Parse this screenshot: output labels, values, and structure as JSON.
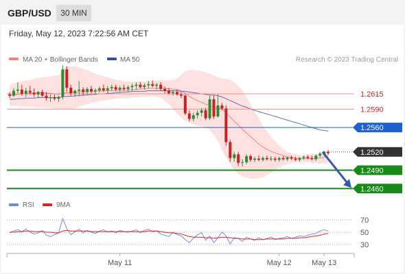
{
  "header": {
    "symbol": "GBP/USD",
    "timeframe": "30 MIN"
  },
  "timestamp": "Friday, May 12, 2023 7:22:56 AM CET",
  "legend": {
    "bb_label": "MA 20 + Bollinger Bands",
    "ma50_label": "MA 50",
    "credit": "Research © 2023 Trading Central"
  },
  "rsi_legend": {
    "rsi_label": "RSI",
    "ma9_label": "9MA"
  },
  "colors": {
    "candle_up": "#2e8b2e",
    "candle_down": "#cc1f1f",
    "ma20": "#f28080",
    "bb_fill": "#fde1e1",
    "ma50": "#5a6fb3",
    "resistance": "#f08c8c",
    "pivot": "#1f5fd1",
    "support": "#178a17",
    "current": "#333333",
    "arrow": "#2e5aa7",
    "rsi": "#6b8fe0",
    "rsi_ma": "#e02020"
  },
  "chart_data": {
    "type": "candlestick",
    "ylim": [
      1.2448,
      1.2652
    ],
    "x_labels": [
      {
        "label": "May 11",
        "index": 27
      },
      {
        "label": "May 12",
        "index": 66
      },
      {
        "label": "May 13",
        "index": 77
      }
    ],
    "levels": [
      {
        "value": 1.2615,
        "label": "1.2615",
        "kind": "resistance"
      },
      {
        "value": 1.259,
        "label": "1.2590",
        "kind": "resistance"
      },
      {
        "value": 1.256,
        "label": "1.2560",
        "kind": "pivot"
      },
      {
        "value": 1.252,
        "label": "1.2520",
        "kind": "current"
      },
      {
        "value": 1.249,
        "label": "1.2490",
        "kind": "support"
      },
      {
        "value": 1.246,
        "label": "1.2460",
        "kind": "support"
      }
    ],
    "forecast": {
      "from": 1.2522,
      "to": 1.246,
      "direction": "down"
    },
    "candles": [
      [
        1.2614,
        1.2618,
        1.2608,
        1.2612
      ],
      [
        1.2612,
        1.2624,
        1.261,
        1.262
      ],
      [
        1.262,
        1.2634,
        1.2616,
        1.2622
      ],
      [
        1.2622,
        1.263,
        1.2612,
        1.2615
      ],
      [
        1.2615,
        1.2625,
        1.261,
        1.262
      ],
      [
        1.262,
        1.2628,
        1.2614,
        1.2617
      ],
      [
        1.2617,
        1.2624,
        1.261,
        1.2614
      ],
      [
        1.2614,
        1.262,
        1.2608,
        1.2618
      ],
      [
        1.2618,
        1.2622,
        1.261,
        1.2612
      ],
      [
        1.2612,
        1.2618,
        1.2604,
        1.2608
      ],
      [
        1.2608,
        1.2614,
        1.2602,
        1.2609
      ],
      [
        1.2609,
        1.2614,
        1.2604,
        1.2607
      ],
      [
        1.2607,
        1.2612,
        1.2602,
        1.261
      ],
      [
        1.261,
        1.2662,
        1.2606,
        1.2655
      ],
      [
        1.2655,
        1.266,
        1.2618,
        1.2625
      ],
      [
        1.2625,
        1.263,
        1.2612,
        1.2616
      ],
      [
        1.2616,
        1.2622,
        1.261,
        1.262
      ],
      [
        1.262,
        1.2636,
        1.2612,
        1.2622
      ],
      [
        1.2622,
        1.2626,
        1.2612,
        1.2618
      ],
      [
        1.2618,
        1.2626,
        1.2614,
        1.2623
      ],
      [
        1.2623,
        1.2628,
        1.2616,
        1.2619
      ],
      [
        1.2619,
        1.2624,
        1.2614,
        1.2621
      ],
      [
        1.2621,
        1.2627,
        1.2617,
        1.2624
      ],
      [
        1.2624,
        1.263,
        1.2618,
        1.2621
      ],
      [
        1.2621,
        1.2628,
        1.2616,
        1.2624
      ],
      [
        1.2624,
        1.263,
        1.262,
        1.2626
      ],
      [
        1.2626,
        1.263,
        1.262,
        1.2622
      ],
      [
        1.2622,
        1.2628,
        1.2618,
        1.2625
      ],
      [
        1.2625,
        1.263,
        1.262,
        1.2623
      ],
      [
        1.2623,
        1.2629,
        1.2618,
        1.2626
      ],
      [
        1.2626,
        1.2632,
        1.262,
        1.2628
      ],
      [
        1.2628,
        1.2634,
        1.2622,
        1.263
      ],
      [
        1.263,
        1.2634,
        1.2624,
        1.2626
      ],
      [
        1.2626,
        1.2632,
        1.2622,
        1.2629
      ],
      [
        1.2629,
        1.2636,
        1.2624,
        1.2631
      ],
      [
        1.2631,
        1.2637,
        1.2626,
        1.2628
      ],
      [
        1.2628,
        1.2633,
        1.2622,
        1.263
      ],
      [
        1.263,
        1.2634,
        1.262,
        1.2623
      ],
      [
        1.2623,
        1.2627,
        1.2616,
        1.262
      ],
      [
        1.262,
        1.2625,
        1.2614,
        1.2616
      ],
      [
        1.2616,
        1.2621,
        1.2612,
        1.2618
      ],
      [
        1.2618,
        1.2622,
        1.2612,
        1.2614
      ],
      [
        1.2614,
        1.2618,
        1.2608,
        1.2612
      ],
      [
        1.2612,
        1.2614,
        1.258,
        1.2583
      ],
      [
        1.2583,
        1.2588,
        1.257,
        1.2574
      ],
      [
        1.2574,
        1.2584,
        1.257,
        1.258
      ],
      [
        1.258,
        1.2588,
        1.2575,
        1.2584
      ],
      [
        1.2584,
        1.2592,
        1.2578,
        1.2588
      ],
      [
        1.2588,
        1.2592,
        1.2572,
        1.2575
      ],
      [
        1.2575,
        1.2612,
        1.2572,
        1.2606
      ],
      [
        1.2606,
        1.2612,
        1.2574,
        1.2578
      ],
      [
        1.2578,
        1.2614,
        1.2576,
        1.2596
      ],
      [
        1.2596,
        1.26,
        1.2588,
        1.2591
      ],
      [
        1.2591,
        1.2596,
        1.253,
        1.2536
      ],
      [
        1.2536,
        1.254,
        1.2504,
        1.251
      ],
      [
        1.251,
        1.252,
        1.2504,
        1.2516
      ],
      [
        1.2516,
        1.252,
        1.2497,
        1.2502
      ],
      [
        1.2502,
        1.2508,
        1.2496,
        1.2503
      ],
      [
        1.2503,
        1.2516,
        1.25,
        1.2513
      ],
      [
        1.2513,
        1.2516,
        1.2504,
        1.2507
      ],
      [
        1.2507,
        1.2512,
        1.2503,
        1.2509
      ],
      [
        1.2509,
        1.2514,
        1.2505,
        1.2507
      ],
      [
        1.2507,
        1.2513,
        1.2504,
        1.251
      ],
      [
        1.251,
        1.2514,
        1.2506,
        1.2508
      ],
      [
        1.2508,
        1.2513,
        1.2505,
        1.2509
      ],
      [
        1.2509,
        1.2512,
        1.2504,
        1.2507
      ],
      [
        1.2507,
        1.2512,
        1.2504,
        1.251
      ],
      [
        1.251,
        1.2513,
        1.2506,
        1.2508
      ],
      [
        1.2508,
        1.2512,
        1.2505,
        1.2511
      ],
      [
        1.2511,
        1.2514,
        1.2507,
        1.2509
      ],
      [
        1.2509,
        1.2512,
        1.2505,
        1.2507
      ],
      [
        1.2507,
        1.2512,
        1.2504,
        1.251
      ],
      [
        1.251,
        1.2514,
        1.2507,
        1.2512
      ],
      [
        1.2512,
        1.2515,
        1.2508,
        1.251
      ],
      [
        1.251,
        1.2514,
        1.2506,
        1.2508
      ],
      [
        1.2508,
        1.2516,
        1.2505,
        1.2514
      ],
      [
        1.2514,
        1.252,
        1.2511,
        1.2517
      ],
      [
        1.2517,
        1.2522,
        1.2513,
        1.252
      ],
      [
        1.252,
        1.2523,
        1.2515,
        1.2518
      ]
    ],
    "ma20": [
      1.2612,
      1.2613,
      1.2614,
      1.2615,
      1.2615,
      1.2616,
      1.2616,
      1.2617,
      1.2617,
      1.2616,
      1.2616,
      1.2615,
      1.2614,
      1.2616,
      1.2617,
      1.2617,
      1.2618,
      1.2618,
      1.2618,
      1.2619,
      1.2619,
      1.2619,
      1.262,
      1.262,
      1.262,
      1.262,
      1.262,
      1.2621,
      1.2621,
      1.2621,
      1.2622,
      1.2622,
      1.2623,
      1.2623,
      1.2624,
      1.2624,
      1.2624,
      1.2624,
      1.2624,
      1.2623,
      1.2623,
      1.2622,
      1.262,
      1.2616,
      1.2611,
      1.2607,
      1.2604,
      1.2601,
      1.2598,
      1.2596,
      1.2593,
      1.2592,
      1.259,
      1.2584,
      1.2577,
      1.257,
      1.2564,
      1.2557,
      1.2551,
      1.2545,
      1.2539,
      1.2533,
      1.2528,
      1.2524,
      1.2521,
      1.2518,
      1.2516,
      1.2514,
      1.2512,
      1.2511,
      1.251,
      1.2509,
      1.2509,
      1.2509,
      1.2509,
      1.251,
      1.251,
      1.2511,
      1.2512
    ],
    "bb_upper": [
      1.263,
      1.2632,
      1.2634,
      1.2636,
      1.2637,
      1.2638,
      1.2639,
      1.2641,
      1.2642,
      1.2643,
      1.2644,
      1.2645,
      1.2645,
      1.2656,
      1.266,
      1.266,
      1.266,
      1.2658,
      1.2656,
      1.2654,
      1.2651,
      1.2648,
      1.2646,
      1.2644,
      1.2642,
      1.264,
      1.2638,
      1.2637,
      1.2636,
      1.2635,
      1.2635,
      1.2635,
      1.2636,
      1.2636,
      1.2636,
      1.2636,
      1.2637,
      1.2637,
      1.2637,
      1.2637,
      1.2638,
      1.264,
      1.2646,
      1.2652,
      1.2654,
      1.2654,
      1.2653,
      1.2652,
      1.265,
      1.2648,
      1.2645,
      1.2642,
      1.264,
      1.264,
      1.2638,
      1.2634,
      1.2628,
      1.262,
      1.261,
      1.2598,
      1.2586,
      1.2575,
      1.2563,
      1.2553,
      1.2545,
      1.2538,
      1.253,
      1.2525,
      1.252,
      1.2518,
      1.2516,
      1.2515,
      1.2515,
      1.2515,
      1.2516,
      1.2517,
      1.2518,
      1.2519,
      1.2521
    ],
    "bb_lower": [
      1.2596,
      1.2595,
      1.2595,
      1.2594,
      1.2594,
      1.2594,
      1.2594,
      1.2593,
      1.2593,
      1.2592,
      1.2592,
      1.2591,
      1.259,
      1.259,
      1.259,
      1.259,
      1.2592,
      1.2594,
      1.2596,
      1.2598,
      1.26,
      1.2602,
      1.2603,
      1.2604,
      1.2605,
      1.2606,
      1.2607,
      1.2607,
      1.2608,
      1.2608,
      1.2609,
      1.2609,
      1.261,
      1.261,
      1.261,
      1.2611,
      1.261,
      1.2608,
      1.2604,
      1.2598,
      1.2591,
      1.2582,
      1.2576,
      1.2571,
      1.2568,
      1.2565,
      1.2563,
      1.2562,
      1.256,
      1.2556,
      1.2548,
      1.2538,
      1.2522,
      1.251,
      1.25,
      1.249,
      1.2484,
      1.248,
      1.2478,
      1.2476,
      1.2476,
      1.2477,
      1.2478,
      1.2482,
      1.2486,
      1.249,
      1.2494,
      1.2497,
      1.25,
      1.2502,
      1.2503,
      1.2503,
      1.2503,
      1.2503,
      1.2502,
      1.2502,
      1.2501,
      1.2501,
      1.2502
    ],
    "ma50": [
      1.2606,
      1.2606,
      1.2607,
      1.2607,
      1.2608,
      1.2608,
      1.2608,
      1.2609,
      1.2609,
      1.2609,
      1.2609,
      1.2609,
      1.2609,
      1.261,
      1.2611,
      1.2611,
      1.2612,
      1.2612,
      1.2613,
      1.2613,
      1.2614,
      1.2614,
      1.2615,
      1.2615,
      1.2616,
      1.2616,
      1.2617,
      1.2617,
      1.2618,
      1.2618,
      1.2619,
      1.2619,
      1.2619,
      1.2619,
      1.262,
      1.262,
      1.262,
      1.262,
      1.262,
      1.262,
      1.262,
      1.262,
      1.2619,
      1.2619,
      1.2618,
      1.2617,
      1.2616,
      1.2615,
      1.2614,
      1.2613,
      1.2613,
      1.2612,
      1.261,
      1.2607,
      1.2604,
      1.2601,
      1.2598,
      1.2595,
      1.2593,
      1.259,
      1.2588,
      1.2586,
      1.2584,
      1.2582,
      1.258,
      1.2578,
      1.2576,
      1.2574,
      1.2572,
      1.257,
      1.2568,
      1.2566,
      1.2564,
      1.2562,
      1.256,
      1.2558,
      1.2556,
      1.2555,
      1.2554
    ],
    "rsi_levels": [
      70,
      50,
      30
    ],
    "rsi_ylim": [
      20,
      80
    ],
    "rsi": [
      49,
      52,
      54,
      51,
      55,
      50,
      47,
      49,
      53,
      45,
      43,
      46,
      49,
      72,
      56,
      46,
      51,
      55,
      49,
      53,
      50,
      48,
      52,
      54,
      50,
      52,
      49,
      53,
      51,
      50,
      52,
      54,
      49,
      53,
      55,
      51,
      52,
      47,
      45,
      43,
      50,
      46,
      44,
      38,
      33,
      40,
      46,
      49,
      37,
      44,
      33,
      41,
      50,
      44,
      31,
      41,
      40,
      35,
      42,
      39,
      37,
      41,
      38,
      40,
      42,
      38,
      40,
      41,
      43,
      40,
      42,
      44,
      43,
      45,
      47,
      48,
      52,
      54,
      52
    ],
    "rsi_ma": [
      50,
      50,
      51,
      51,
      52,
      52,
      51,
      51,
      51,
      50,
      50,
      49,
      49,
      52,
      53,
      52,
      52,
      52,
      52,
      52,
      51,
      51,
      51,
      51,
      51,
      51,
      51,
      51,
      51,
      51,
      51,
      51,
      51,
      51,
      52,
      52,
      52,
      51,
      50,
      49,
      49,
      48,
      47,
      45,
      43,
      42,
      42,
      42,
      41,
      41,
      40,
      41,
      42,
      42,
      41,
      40,
      40,
      39,
      39,
      39,
      38,
      38,
      38,
      39,
      39,
      39,
      39,
      39,
      40,
      40,
      40,
      41,
      41,
      42,
      43,
      44,
      45,
      47,
      48
    ]
  }
}
